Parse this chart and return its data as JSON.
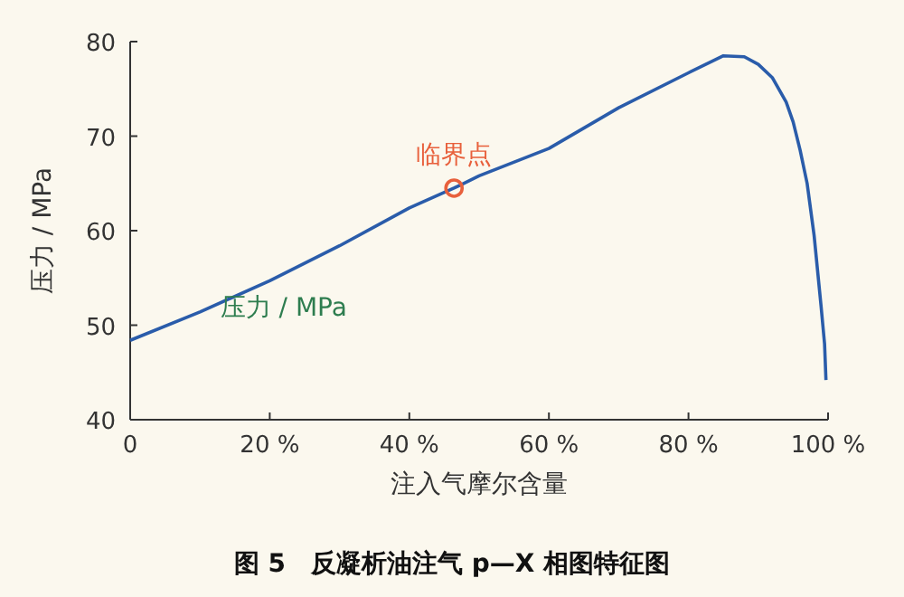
{
  "chart_data": {
    "type": "line",
    "title": "图 5　反凝析油注气 p—X 相图特征图",
    "xlabel": "注入气摩尔含量",
    "ylabel": "压力 / MPa",
    "annotations": [
      {
        "text": "临界点",
        "x": 46.4,
        "y": 64.5
      },
      "压力 / MPa"
    ],
    "xlim": [
      0,
      100
    ],
    "ylim": [
      40,
      80
    ],
    "xticks": [
      0,
      {
        "value": 20,
        "label": "20 %"
      },
      {
        "value": 40,
        "label": "40 %"
      },
      {
        "value": 60,
        "label": "60 %"
      },
      {
        "value": 80,
        "label": "80 %"
      },
      {
        "value": 100,
        "label": "100 %"
      }
    ],
    "yticks": [
      40,
      50,
      60,
      70,
      80
    ],
    "grid": false,
    "series": [
      {
        "color": "#2a5caa",
        "marker": "none",
        "x": [
          0,
          10,
          20,
          30,
          40,
          46.4,
          50,
          60,
          70,
          80,
          85,
          88,
          90,
          92,
          94,
          95,
          96,
          97,
          98,
          99,
          99.5,
          99.7
        ],
        "values": [
          48.4,
          51.4,
          54.7,
          58.4,
          62.4,
          64.5,
          65.8,
          68.7,
          73,
          76.7,
          78.5,
          78.4,
          77.6,
          76.2,
          73.6,
          71.5,
          68.5,
          65,
          59.5,
          52,
          48,
          44.2
        ]
      },
      {
        "type": "scatter",
        "color": "#e8603c",
        "marker": "circle",
        "x": [
          46.4
        ],
        "values": [
          64.5
        ]
      }
    ]
  }
}
